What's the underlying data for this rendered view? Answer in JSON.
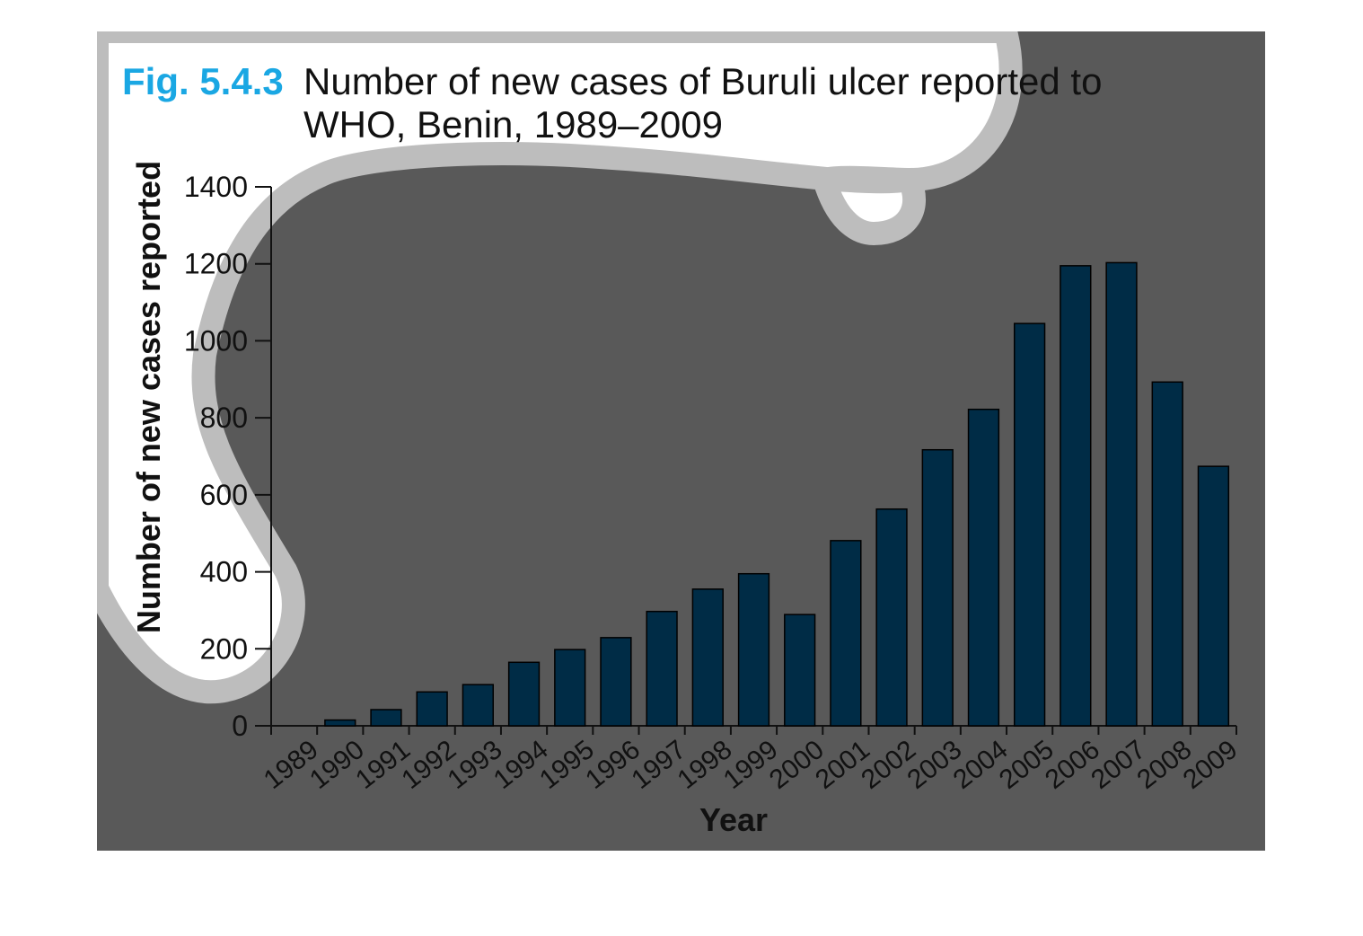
{
  "figure": {
    "number": "Fig. 5.4.3",
    "title": "Number of new cases of Buruli ulcer reported to WHO, Benin, 1989–2009"
  },
  "colors": {
    "panel_background": "#595959",
    "blob_fill": "#ffffff",
    "blob_outline": "#bdbdbd",
    "bar_fill": "#002c46",
    "figure_number": "#1aa7e3",
    "text": "#111111"
  },
  "chart_data": {
    "type": "bar",
    "xlabel": "Year",
    "ylabel": "Number of new cases reported",
    "ylim": [
      0,
      1400
    ],
    "yticks": [
      0,
      200,
      400,
      600,
      800,
      1000,
      1200,
      1400
    ],
    "grid": false,
    "categories": [
      "1989",
      "1990",
      "1991",
      "1992",
      "1993",
      "1994",
      "1995",
      "1996",
      "1997",
      "1998",
      "1999",
      "2000",
      "2001",
      "2002",
      "2003",
      "2004",
      "2005",
      "2006",
      "2007",
      "2008",
      "2009"
    ],
    "values": [
      0,
      15,
      42,
      88,
      107,
      165,
      198,
      229,
      297,
      355,
      395,
      289,
      481,
      563,
      717,
      822,
      1045,
      1195,
      1203,
      893,
      674
    ]
  }
}
